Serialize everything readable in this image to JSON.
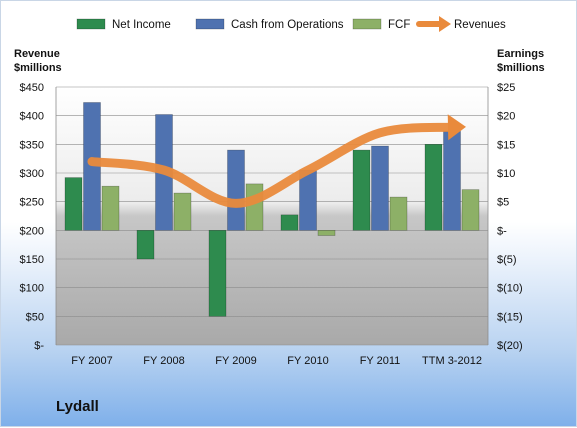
{
  "company": "Lydall",
  "chart_data": {
    "type": "bar",
    "categories": [
      "FY 2007",
      "FY 2008",
      "FY 2009",
      "FY 2010",
      "FY 2011",
      "TTM 3-2012"
    ],
    "left_axis": {
      "label_line1": "Revenue",
      "label_line2": "$millions",
      "ylim": [
        0,
        450
      ],
      "ticks": [
        0,
        50,
        100,
        150,
        200,
        250,
        300,
        350,
        400,
        450
      ],
      "tick_labels": [
        "$-",
        "$50",
        "$100",
        "$150",
        "$200",
        "$250",
        "$300",
        "$350",
        "$400",
        "$450"
      ]
    },
    "right_axis": {
      "label_line1": "Earnings",
      "label_line2": "$millions",
      "ylim": [
        -20,
        25
      ],
      "ticks": [
        -20,
        -15,
        -10,
        -5,
        0,
        5,
        10,
        15,
        20,
        25
      ],
      "tick_labels": [
        "$(20)",
        "$(15)",
        "$(10)",
        "$(5)",
        "$-",
        "$5",
        "$10",
        "$15",
        "$20",
        "$25"
      ]
    },
    "series": [
      {
        "name": "Net Income",
        "type": "bar",
        "axis": "right",
        "color": "#2e8b4e",
        "values": [
          9.2,
          -5.0,
          -15.0,
          2.7,
          14.0,
          15.0
        ]
      },
      {
        "name": "Cash from Operations",
        "type": "bar",
        "axis": "right",
        "color": "#4f72b0",
        "values": [
          22.3,
          20.2,
          14.0,
          10.5,
          14.7,
          17.3
        ]
      },
      {
        "name": "FCF",
        "type": "bar",
        "axis": "right",
        "color": "#8db067",
        "values": [
          7.7,
          6.5,
          8.1,
          -0.9,
          5.8,
          7.1
        ]
      },
      {
        "name": "Revenues",
        "type": "line",
        "axis": "left",
        "color": "#e98a3c",
        "values": [
          320,
          305,
          247,
          305,
          370,
          380
        ]
      }
    ],
    "grid": true,
    "legend": "top"
  }
}
